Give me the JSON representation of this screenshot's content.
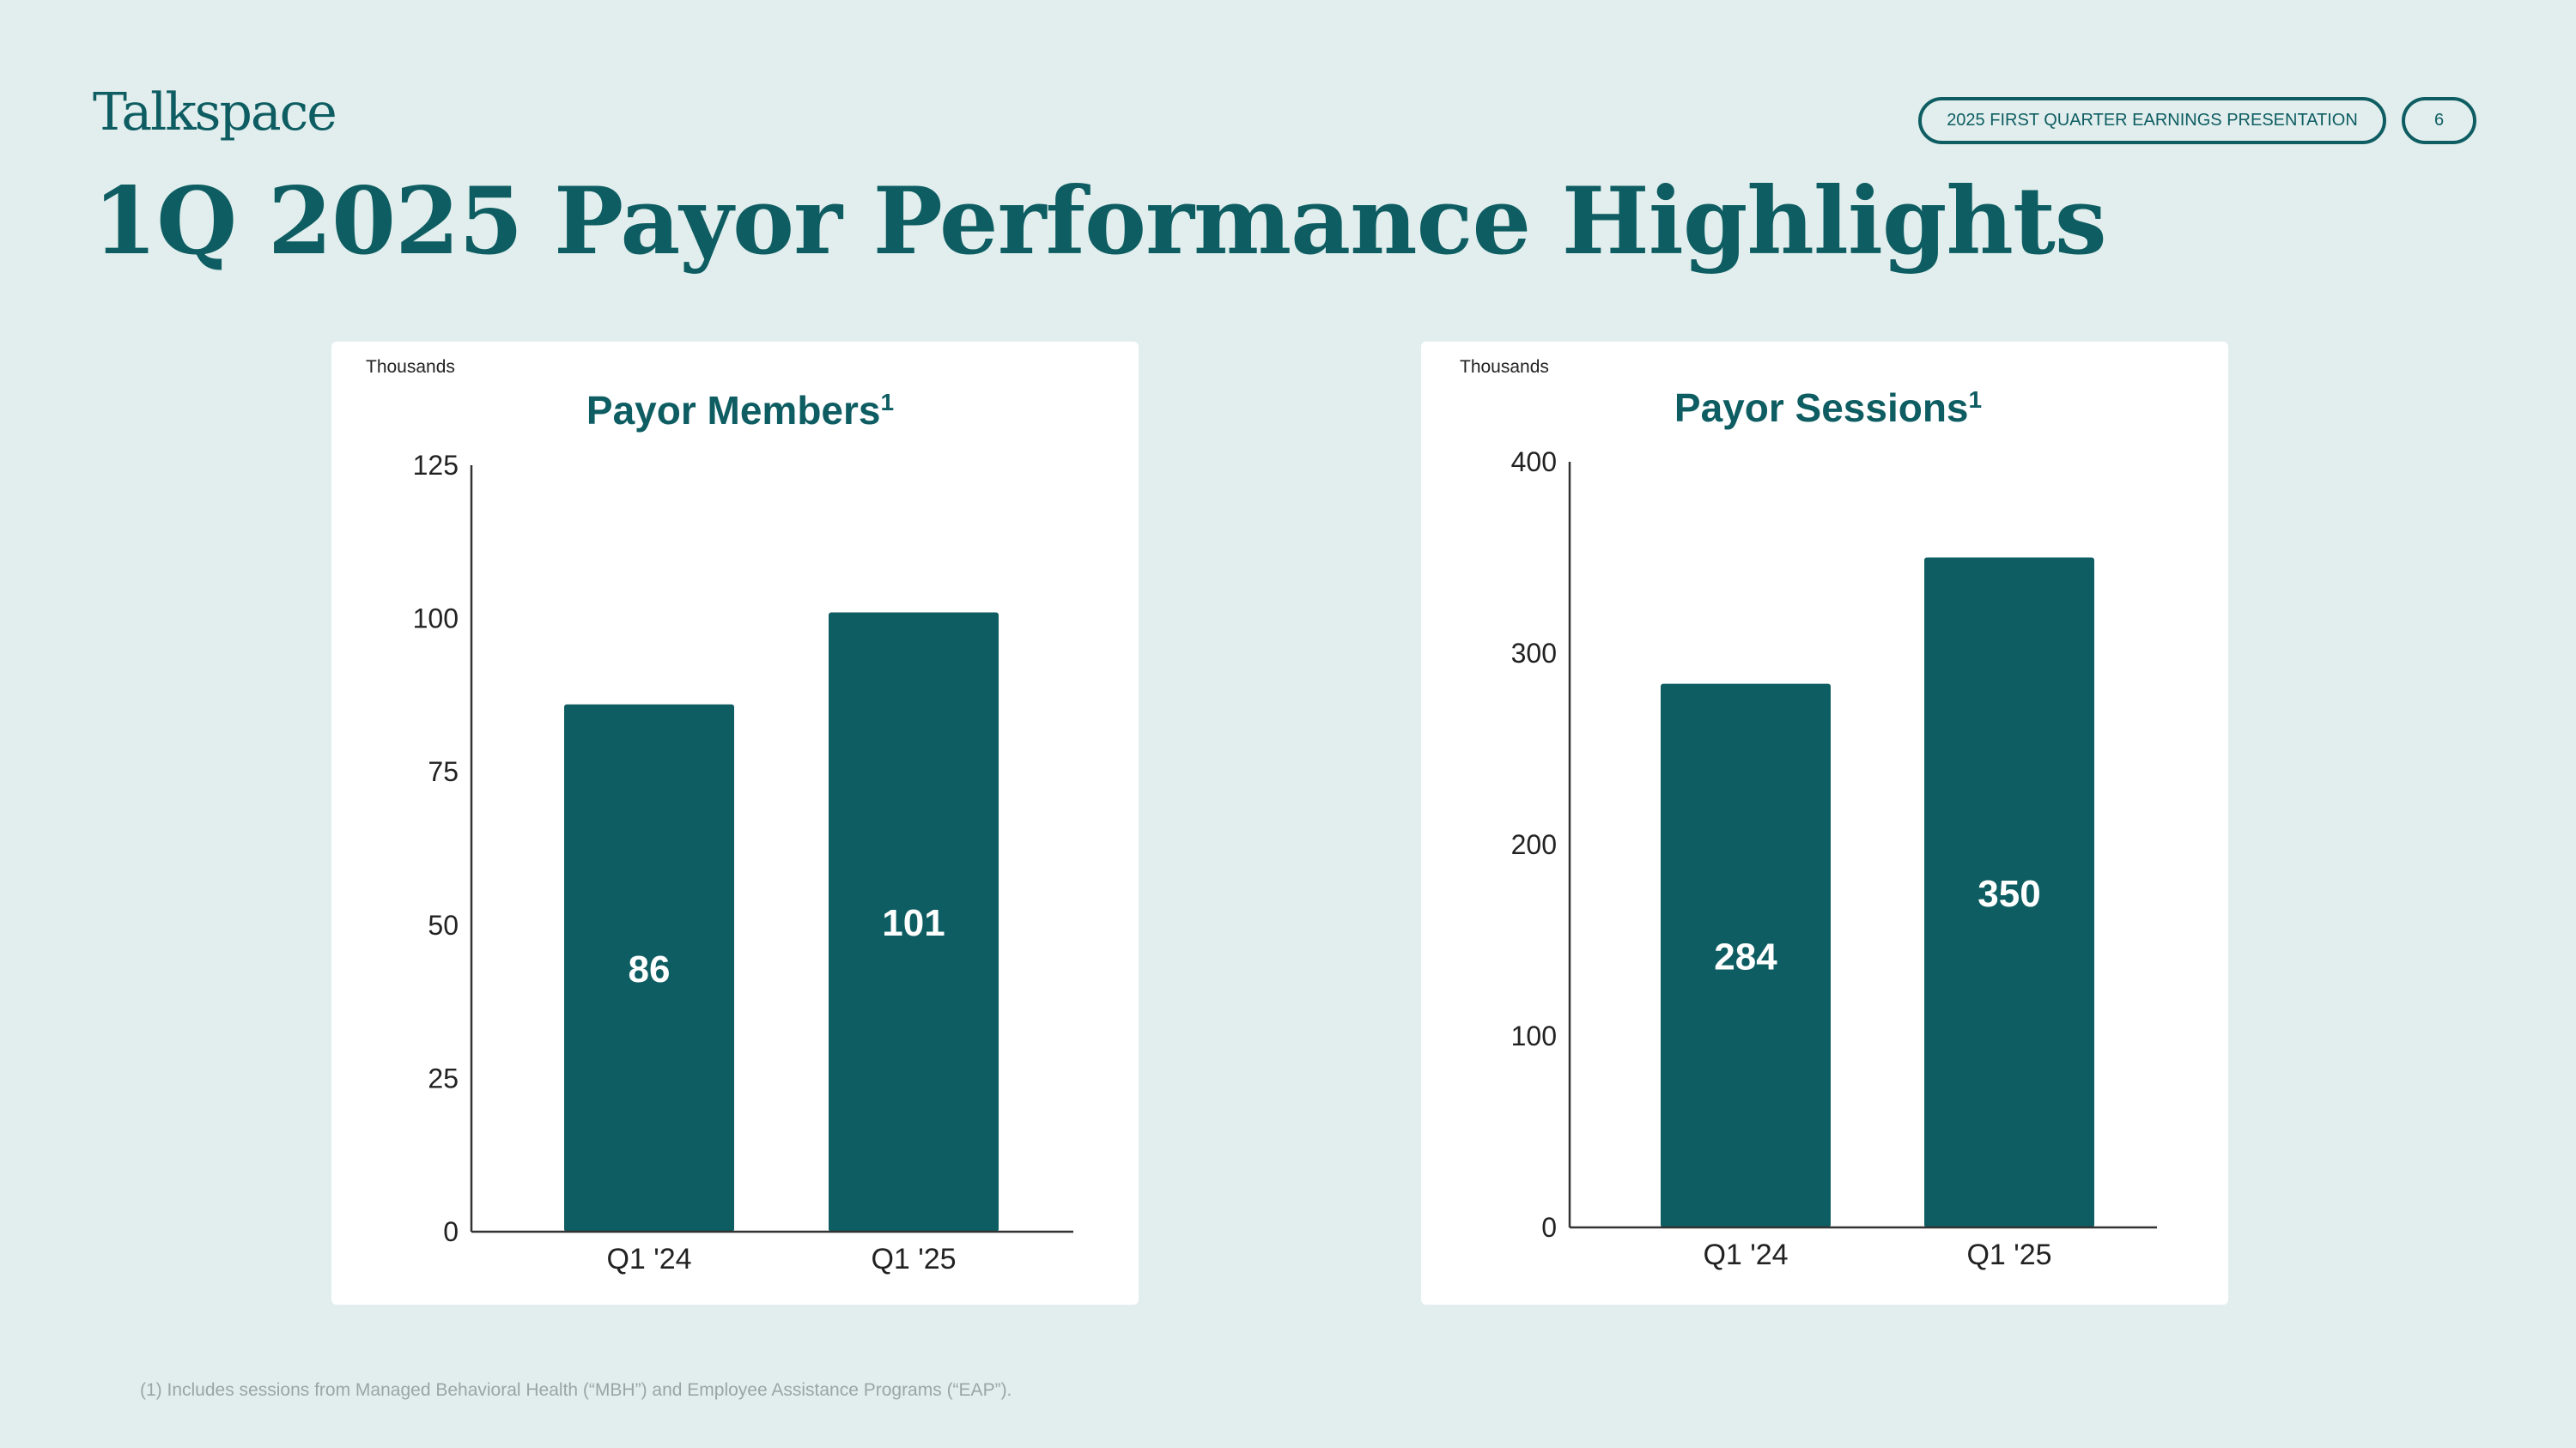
{
  "brand": {
    "name": "Talkspace"
  },
  "header": {
    "presentation_label": "2025 FIRST QUARTER EARNINGS PRESENTATION",
    "page_number": "6",
    "title": "1Q 2025 Payor Performance Highlights"
  },
  "colors": {
    "bar": "#0e5d62",
    "title": "#0e5d62",
    "background": "#e1eeed"
  },
  "chart_data": [
    {
      "type": "bar",
      "title": "Payor Members",
      "title_superscript": "1",
      "unit_label": "Thousands",
      "categories": [
        "Q1 '24",
        "Q1 '25"
      ],
      "values": [
        86,
        101
      ],
      "data_labels": [
        "86",
        "101"
      ],
      "ylim": [
        0,
        125
      ],
      "yticks": [
        0,
        25,
        50,
        75,
        100,
        125
      ],
      "grid": false
    },
    {
      "type": "bar",
      "title": "Payor Sessions",
      "title_superscript": "1",
      "unit_label": "Thousands",
      "categories": [
        "Q1 '24",
        "Q1 '25"
      ],
      "values": [
        284,
        350
      ],
      "data_labels": [
        "284",
        "350"
      ],
      "ylim": [
        0,
        400
      ],
      "yticks": [
        0,
        100,
        200,
        300,
        400
      ],
      "grid": false
    }
  ],
  "footnote": "(1) Includes sessions from Managed Behavioral Health (“MBH”) and Employee Assistance Programs (“EAP”)."
}
